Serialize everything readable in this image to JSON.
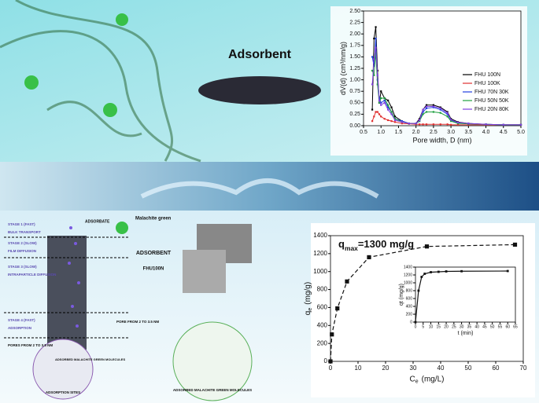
{
  "chart_data": [
    {
      "type": "line",
      "ylabel": "dV(d) (cm³/nm/g)",
      "xlabel": "Pore width, D (nm)",
      "xlim": [
        0.5,
        5.0
      ],
      "xticks": [
        {
          "value": 0.5,
          "label": "0.5"
        },
        {
          "value": 1,
          "label": "1.0"
        },
        {
          "value": 1.5,
          "label": "1.5"
        },
        {
          "value": 2,
          "label": "2.0"
        },
        {
          "value": 2.5,
          "label": "2.5"
        },
        {
          "value": 3,
          "label": "3.0"
        },
        {
          "value": 3.5,
          "label": "3.5"
        },
        {
          "value": 4,
          "label": "4.0"
        },
        {
          "value": 4.5,
          "label": "4.5"
        },
        {
          "value": 5,
          "label": "5.0"
        }
      ],
      "ylim": [
        0,
        2.5
      ],
      "yticks": [
        {
          "value": 0,
          "label": "0.00"
        },
        {
          "value": 0.25,
          "label": "0.25"
        },
        {
          "value": 0.5,
          "label": "0.50"
        },
        {
          "value": 0.75,
          "label": "0.75"
        },
        {
          "value": 1,
          "label": "1.00"
        },
        {
          "value": 1.25,
          "label": "1.25"
        },
        {
          "value": 1.5,
          "label": "1.50"
        },
        {
          "value": 1.75,
          "label": "1.75"
        },
        {
          "value": 2,
          "label": "2.00"
        },
        {
          "value": 2.25,
          "label": "2.25"
        },
        {
          "value": 2.5,
          "label": "2.50"
        }
      ],
      "x": [
        0.75,
        0.8,
        0.85,
        0.9,
        0.95,
        1.0,
        1.1,
        1.2,
        1.3,
        1.4,
        1.6,
        1.8,
        2.0,
        2.1,
        2.2,
        2.3,
        2.5,
        2.7,
        2.9,
        3.0,
        3.2,
        3.5,
        4.0,
        4.5,
        5.0
      ],
      "series": [
        {
          "name": "FHU 100N",
          "color": "#000000",
          "values": [
            0.35,
            1.9,
            2.15,
            1.2,
            0.5,
            0.75,
            0.6,
            0.55,
            0.4,
            0.2,
            0.1,
            0.05,
            0.05,
            0.15,
            0.35,
            0.45,
            0.45,
            0.4,
            0.3,
            0.15,
            0.08,
            0.05,
            0.03,
            0.02,
            0.02
          ]
        },
        {
          "name": "FHU 100K",
          "color": "#e03030",
          "values": [
            0.1,
            0.2,
            0.3,
            0.3,
            0.25,
            0.2,
            0.15,
            0.12,
            0.1,
            0.08,
            0.05,
            0.04,
            0.03,
            0.03,
            0.03,
            0.03,
            0.03,
            0.03,
            0.03,
            0.02,
            0.02,
            0.02,
            0.02,
            0.02,
            0.02
          ]
        },
        {
          "name": "FHU 70N 30K",
          "color": "#2040e0",
          "values": [
            1.5,
            1.3,
            1.9,
            1.0,
            0.6,
            0.5,
            0.55,
            0.4,
            0.3,
            0.15,
            0.1,
            0.05,
            0.05,
            0.1,
            0.3,
            0.38,
            0.4,
            0.35,
            0.25,
            0.12,
            0.06,
            0.04,
            0.03,
            0.02,
            0.02
          ]
        },
        {
          "name": "FHU 50N 50K",
          "color": "#20a040",
          "values": [
            1.2,
            1.1,
            1.6,
            0.9,
            0.5,
            0.6,
            0.6,
            0.45,
            0.3,
            0.15,
            0.08,
            0.05,
            0.05,
            0.1,
            0.25,
            0.3,
            0.3,
            0.28,
            0.2,
            0.1,
            0.05,
            0.04,
            0.03,
            0.02,
            0.02
          ]
        },
        {
          "name": "FHU 20N 80K",
          "color": "#8040e0",
          "values": [
            0.9,
            1.45,
            1.7,
            1.1,
            0.55,
            0.45,
            0.5,
            0.35,
            0.25,
            0.12,
            0.08,
            0.05,
            0.05,
            0.12,
            0.35,
            0.42,
            0.42,
            0.38,
            0.28,
            0.13,
            0.07,
            0.05,
            0.03,
            0.02,
            0.02
          ]
        }
      ]
    },
    {
      "type": "scatter",
      "annotation": "q",
      "annotation_sub": "max",
      "annotation_rest": "=1300 mg/g",
      "ylabel": "q",
      "ylabel_sub": "e",
      "ylabel_unit": "(mg/g)",
      "xlabel": "C",
      "xlabel_sub": "e",
      "xlabel_unit": "(mg/L)",
      "xlim": [
        0,
        70
      ],
      "xticks": [
        0,
        10,
        20,
        30,
        40,
        50,
        60,
        70
      ],
      "ylim": [
        0,
        1400
      ],
      "yticks": [
        0,
        200,
        400,
        600,
        800,
        1000,
        1200,
        1400
      ],
      "x": [
        0,
        0.5,
        2.5,
        6,
        14,
        35,
        67
      ],
      "series": [
        {
          "name": null,
          "color": "#111111",
          "values": [
            0,
            300,
            590,
            890,
            1160,
            1280,
            1300
          ]
        }
      ]
    },
    {
      "type": "line",
      "ylabel": "qt (mg/g)",
      "xlabel": "t (min)",
      "xlim": [
        0,
        65
      ],
      "xticks": [
        0,
        5,
        10,
        15,
        20,
        25,
        30,
        35,
        40,
        45,
        50,
        55,
        60,
        65
      ],
      "ylim": [
        0,
        1400
      ],
      "yticks": [
        0,
        200,
        400,
        600,
        800,
        1000,
        1200,
        1400
      ],
      "x": [
        0,
        2,
        4,
        6,
        10,
        15,
        20,
        30,
        60
      ],
      "series": [
        {
          "name": null,
          "color": "#111111",
          "values": [
            0,
            800,
            1150,
            1230,
            1270,
            1280,
            1290,
            1295,
            1300
          ]
        }
      ]
    }
  ],
  "texts": {
    "adsorbent_title": "Adsorbent",
    "stages": [
      "STAGE 1 (FAST)",
      "BULK TRANSPORT",
      "STAGE 2 (SLOW)",
      "FILM DIFFUSION",
      "STAGE 3 (SLOW)",
      "INTRAPARTICLE DIFFUSION",
      "STAGE 4 (FAST)",
      "ADSORPTION"
    ],
    "adsorbate": "ADSORBATE",
    "malachite": "Malachite green",
    "adsorbent": "ADSORBENT",
    "fhu": "FHU100N",
    "pore": "PORE FROM 2 TO 3.5 NM",
    "pores": "PORES FROM 2 TO 3.5 NM",
    "adsorbed1": "ADSORBED MALACHITE GREEN MOLECULES",
    "sites": "ADSORPTION SITES",
    "adsorbed2": "ADSORBED MALACHITE GREEN MOLECULES"
  }
}
